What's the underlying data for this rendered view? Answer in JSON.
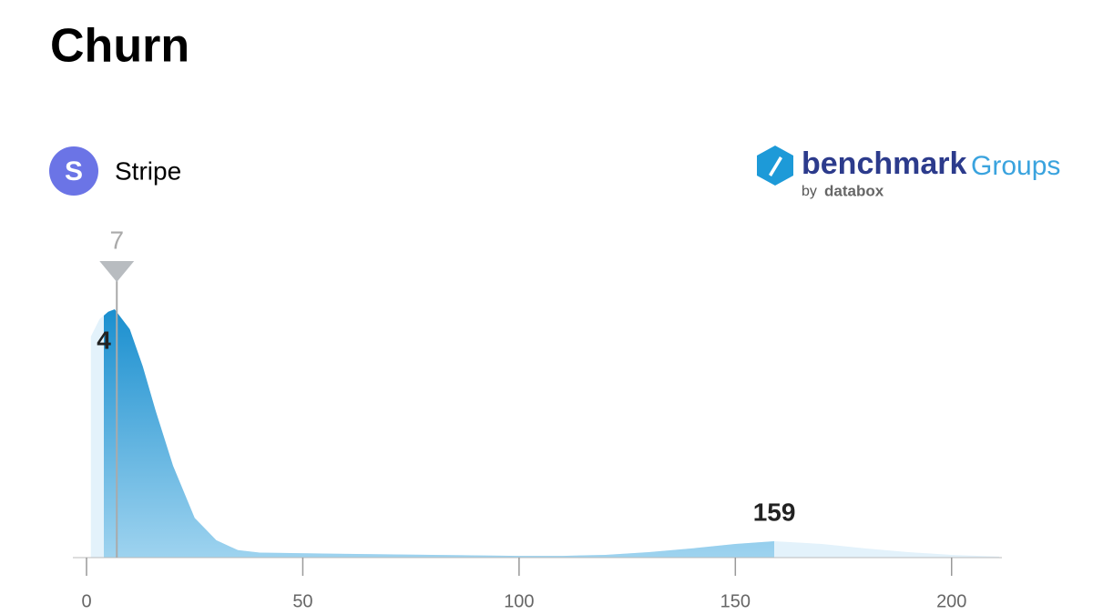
{
  "chart_data": {
    "type": "density",
    "title": "Churn",
    "source_icon": "S",
    "source": "Stripe",
    "logo": {
      "name": "benchmark",
      "suffix": "Groups",
      "byline": "by",
      "company": "databox"
    },
    "x": [
      1,
      3,
      5,
      6.5,
      10,
      13,
      16,
      20,
      25,
      30,
      35,
      40,
      60,
      80,
      100,
      110,
      120,
      130,
      140,
      150,
      159,
      170,
      180,
      190,
      200,
      211
    ],
    "values": [
      0.89,
      0.96,
      0.99,
      1.0,
      0.92,
      0.77,
      0.59,
      0.37,
      0.16,
      0.07,
      0.03,
      0.02,
      0.015,
      0.011,
      0.007,
      0.007,
      0.011,
      0.022,
      0.037,
      0.055,
      0.066,
      0.055,
      0.037,
      0.022,
      0.011,
      0.004
    ],
    "color": "#2196d3",
    "range": {
      "low": 4,
      "high": 159
    },
    "median": 7,
    "xlim": [
      0,
      211
    ],
    "ylim": [
      0,
      1
    ],
    "xticks": [
      0,
      50,
      100,
      150,
      200
    ]
  }
}
